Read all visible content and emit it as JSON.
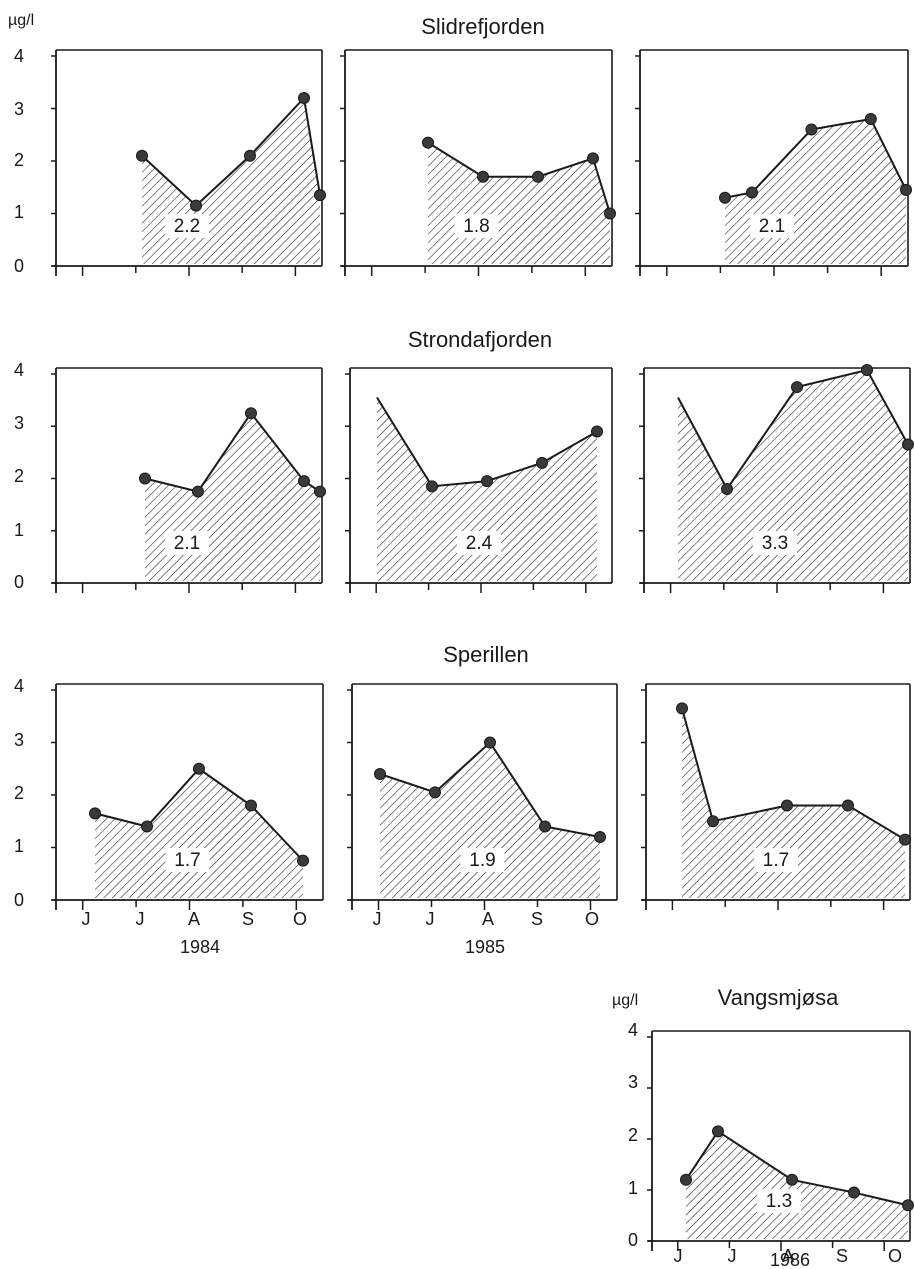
{
  "figure": {
    "unit_label": "µg/l",
    "row_titles": [
      "Slidrefjorden",
      "Strondafjorden",
      "Sperillen",
      "Vangsmjøsa"
    ],
    "year_labels": [
      "1984",
      "1985",
      "1986"
    ],
    "month_labels": [
      "J",
      "J",
      "A",
      "S",
      "O"
    ],
    "y_ticks": [
      "0",
      "1",
      "2",
      "3",
      "4"
    ]
  },
  "colors": {
    "ink": "#1a1a1a",
    "marker": "#3a3a3a",
    "background": "#ffffff"
  },
  "chart_data": [
    {
      "type": "area",
      "lake": "Slidrefjorden",
      "year": "1984",
      "x": [
        1,
        2,
        3,
        4,
        5
      ],
      "values": [
        2.1,
        1.15,
        2.1,
        3.2,
        1.35
      ],
      "mean_label": "2.2",
      "ylim": [
        0,
        4
      ]
    },
    {
      "type": "area",
      "lake": "Slidrefjorden",
      "year": "1985",
      "x": [
        1,
        2,
        3,
        4,
        5
      ],
      "values": [
        2.35,
        1.7,
        1.7,
        2.05,
        1.0
      ],
      "mean_label": "1.8",
      "ylim": [
        0,
        4
      ]
    },
    {
      "type": "area",
      "lake": "Slidrefjorden",
      "year": "1986",
      "x": [
        1,
        1.5,
        2.6,
        3.7,
        4.7
      ],
      "values": [
        1.3,
        1.4,
        2.6,
        2.8,
        1.45
      ],
      "mean_label": "2.1",
      "ylim": [
        0,
        4
      ]
    },
    {
      "type": "area",
      "lake": "Strondafjorden",
      "year": "1984",
      "x": [
        1,
        2,
        3,
        4,
        5
      ],
      "values": [
        2.0,
        1.75,
        3.25,
        1.95,
        1.75
      ],
      "mean_label": "2.1",
      "ylim": [
        0,
        4
      ]
    },
    {
      "type": "area",
      "lake": "Strondafjorden",
      "year": "1985",
      "x": [
        1,
        2,
        3,
        4,
        5
      ],
      "values": [
        3.55,
        1.85,
        1.95,
        2.3,
        2.9
      ],
      "mean_label": "2.4",
      "ylim": [
        0,
        4
      ],
      "first_point_marker": false
    },
    {
      "type": "area",
      "lake": "Strondafjorden",
      "year": "1986",
      "x": [
        0.3,
        1,
        2,
        3,
        4
      ],
      "values": [
        3.55,
        1.8,
        3.75,
        4.25,
        2.65
      ],
      "mean_label": "3.3",
      "ylim": [
        0,
        4
      ],
      "first_point_marker": false
    },
    {
      "type": "area",
      "lake": "Sperillen",
      "year": "1984",
      "x": [
        1,
        2,
        3,
        4,
        5
      ],
      "values": [
        1.65,
        1.4,
        2.5,
        1.8,
        0.75
      ],
      "mean_label": "1.7",
      "ylim": [
        0,
        4
      ]
    },
    {
      "type": "area",
      "lake": "Sperillen",
      "year": "1985",
      "x": [
        1,
        2,
        3,
        4,
        5
      ],
      "values": [
        2.4,
        2.05,
        3.0,
        1.4,
        1.2
      ],
      "mean_label": "1.9",
      "ylim": [
        0,
        4
      ]
    },
    {
      "type": "area",
      "lake": "Sperillen",
      "year": "1986",
      "x": [
        1,
        1.25,
        2.4,
        3.4,
        4.5
      ],
      "values": [
        3.65,
        1.5,
        1.8,
        1.8,
        1.15
      ],
      "mean_label": "1.7",
      "ylim": [
        0,
        4
      ]
    },
    {
      "type": "area",
      "lake": "Vangsmjøsa",
      "year": "1986",
      "x": [
        1,
        1.5,
        2.6,
        3.6,
        4.6
      ],
      "values": [
        1.2,
        2.15,
        1.2,
        0.95,
        0.7
      ],
      "mean_label": "1.3",
      "ylim": [
        0,
        4
      ]
    }
  ]
}
